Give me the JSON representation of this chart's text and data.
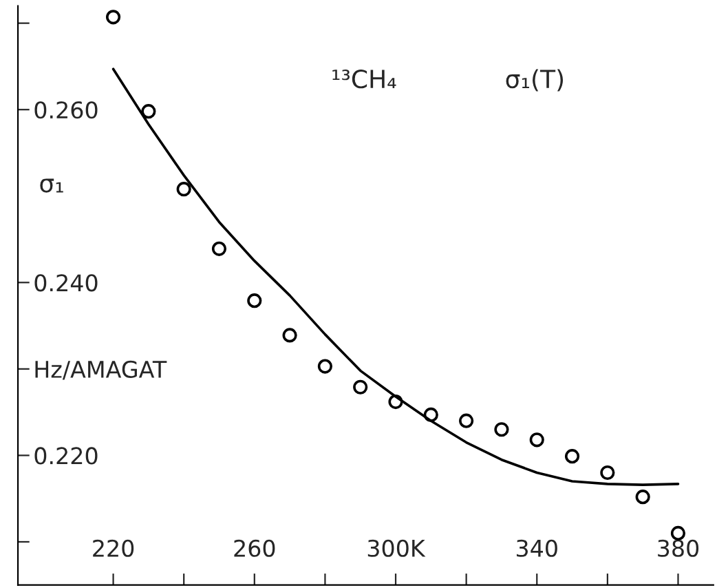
{
  "chart_data": {
    "type": "scatter",
    "ylabel": "σ₁",
    "annotations": [
      "¹³CH₄",
      "σ₁(T)"
    ],
    "xlim": [
      193,
      390
    ],
    "ylim": [
      0.205,
      0.272
    ],
    "xticks": [
      220,
      {
        "value": 240,
        "label": null
      },
      260,
      {
        "value": 280,
        "label": null
      },
      {
        "value": 300,
        "label": "300K"
      },
      {
        "value": 320,
        "label": null
      },
      340,
      {
        "value": 360,
        "label": null
      },
      380
    ],
    "yticks": [
      {
        "value": 0.21,
        "label": null
      },
      {
        "value": 0.22,
        "label": "0.220"
      },
      {
        "value": 0.23,
        "label": "Hz/AMAGAT"
      },
      {
        "value": 0.24,
        "label": "0.240"
      },
      {
        "value": 0.26,
        "label": "0.260"
      },
      {
        "value": 0.27,
        "label": null
      }
    ],
    "grid": false,
    "legend": false,
    "series": [
      {
        "marker": "circle",
        "color": "#000000",
        "x": [
          220,
          230,
          240,
          250,
          260,
          270,
          280,
          290,
          300,
          310,
          320,
          330,
          340,
          350,
          360,
          370,
          380
        ],
        "values": [
          0.2707,
          0.2598,
          0.2508,
          0.2439,
          0.2379,
          0.2339,
          0.2303,
          0.2279,
          0.2262,
          0.2247,
          0.224,
          0.223,
          0.2218,
          0.2199,
          0.218,
          0.2152,
          0.211
        ]
      },
      {
        "type": "line",
        "marker": "none",
        "line_style": "solid",
        "color": "#000000",
        "x": [
          220,
          230,
          240,
          250,
          260,
          270,
          280,
          290,
          300,
          310,
          320,
          330,
          340,
          350,
          360,
          370,
          380
        ],
        "values": [
          0.2647,
          0.2583,
          0.2524,
          0.247,
          0.2425,
          0.2385,
          0.234,
          0.2298,
          0.2268,
          0.224,
          0.2215,
          0.2195,
          0.218,
          0.217,
          0.2167,
          0.2166,
          0.2167
        ]
      }
    ]
  }
}
